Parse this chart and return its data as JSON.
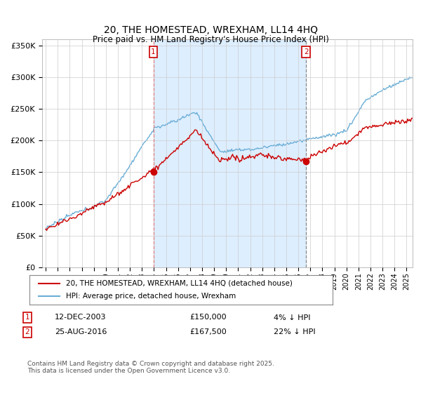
{
  "title": "20, THE HOMESTEAD, WREXHAM, LL14 4HQ",
  "subtitle": "Price paid vs. HM Land Registry's House Price Index (HPI)",
  "ylabel_ticks": [
    "£0",
    "£50K",
    "£100K",
    "£150K",
    "£200K",
    "£250K",
    "£300K",
    "£350K"
  ],
  "ytick_values": [
    0,
    50000,
    100000,
    150000,
    200000,
    250000,
    300000,
    350000
  ],
  "ylim": [
    0,
    360000
  ],
  "xlim_start": 1994.7,
  "xlim_end": 2025.5,
  "hpi_color": "#6aaed6",
  "hpi_fill_color": "#ddeeff",
  "price_color": "#cc0000",
  "vline1_color": "#e08080",
  "vline2_color": "#888888",
  "marker1_date": 2003.95,
  "marker1_price": 150000,
  "marker2_date": 2016.65,
  "marker2_price": 167500,
  "legend_line1": "20, THE HOMESTEAD, WREXHAM, LL14 4HQ (detached house)",
  "legend_line2": "HPI: Average price, detached house, Wrexham",
  "footer": "Contains HM Land Registry data © Crown copyright and database right 2025.\nThis data is licensed under the Open Government Licence v3.0.",
  "background_color": "#ffffff",
  "grid_color": "#cccccc",
  "xtick_years": [
    1995,
    1996,
    1997,
    1998,
    1999,
    2000,
    2001,
    2002,
    2003,
    2004,
    2005,
    2006,
    2007,
    2008,
    2009,
    2010,
    2011,
    2012,
    2013,
    2014,
    2015,
    2016,
    2017,
    2018,
    2019,
    2020,
    2021,
    2022,
    2023,
    2024,
    2025
  ]
}
